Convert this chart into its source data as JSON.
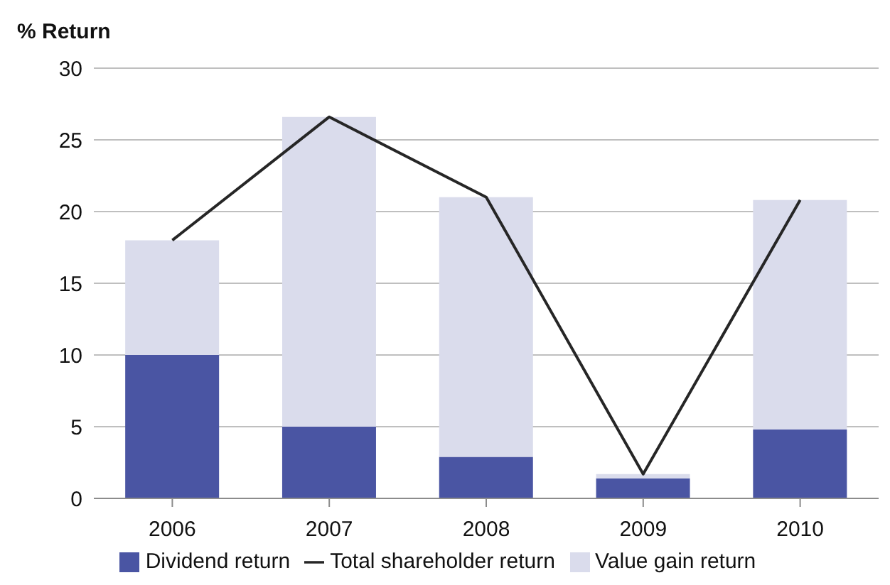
{
  "chart_data": {
    "type": "bar",
    "ylabel": "% Return",
    "categories": [
      "2006",
      "2007",
      "2008",
      "2009",
      "2010"
    ],
    "stacked": true,
    "series": [
      {
        "name": "Dividend return",
        "color": "#4a55a3",
        "values": [
          10.0,
          5.0,
          2.9,
          1.4,
          4.8
        ]
      },
      {
        "name": "Value gain return",
        "color": "#dadcec",
        "values": [
          8.0,
          21.6,
          18.1,
          0.3,
          16.0
        ]
      },
      {
        "name": "Total shareholder return",
        "type": "line",
        "color": "#262626",
        "values": [
          18.0,
          26.6,
          21.0,
          1.7,
          20.8
        ]
      }
    ],
    "ylim": [
      0,
      30
    ],
    "yticks": [
      0,
      5,
      10,
      15,
      20,
      25,
      30
    ],
    "grid": "y",
    "legend": "bottom",
    "marker": "none"
  }
}
